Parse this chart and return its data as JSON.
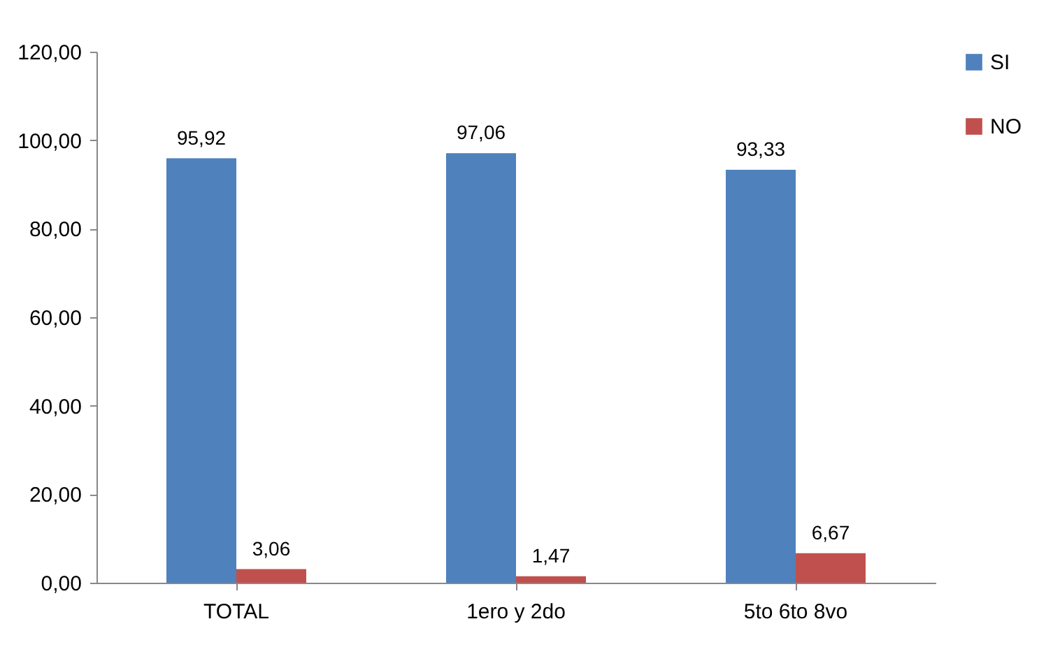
{
  "chart_data": {
    "type": "bar",
    "categories": [
      "TOTAL",
      "1ero y 2do",
      "5to 6to 8vo"
    ],
    "series": [
      {
        "name": "SI",
        "color": "#4f81bd",
        "values": [
          95.92,
          97.06,
          93.33
        ],
        "value_labels": [
          "95,92",
          "97,06",
          "93,33"
        ]
      },
      {
        "name": "NO",
        "color": "#c0504d",
        "values": [
          3.06,
          1.47,
          6.67
        ],
        "value_labels": [
          "3,06",
          "1,47",
          "6,67"
        ]
      }
    ],
    "ylim": [
      0,
      120
    ],
    "yticks": [
      {
        "value": 0,
        "label": "0,00"
      },
      {
        "value": 20,
        "label": "20,00"
      },
      {
        "value": 40,
        "label": "40,00"
      },
      {
        "value": 60,
        "label": "60,00"
      },
      {
        "value": 80,
        "label": "80,00"
      },
      {
        "value": 100,
        "label": "100,00"
      },
      {
        "value": 120,
        "label": "120,00"
      }
    ],
    "grid": false,
    "legend": "right"
  }
}
